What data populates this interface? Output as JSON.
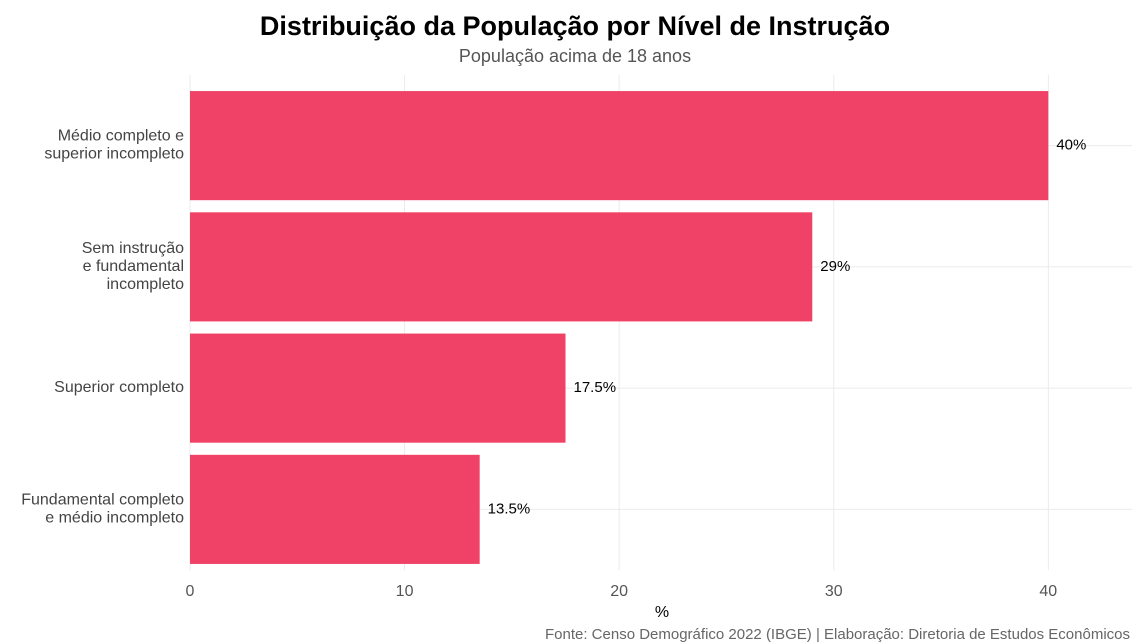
{
  "chart_data": {
    "type": "bar",
    "orientation": "horizontal",
    "title": "Distribuição da População por Nível de Instrução",
    "subtitle": "População acima de 18 anos",
    "x_label": "%",
    "caption": "Fonte: Censo Demográfico 2022 (IBGE) | Elaboração: Diretoria de Estudos Econômicos",
    "categories": [
      "Médio completo e\nsuperior incompleto",
      "Sem instrução\ne fundamental\nincompleto",
      "Superior completo",
      "Fundamental completo\ne médio incompleto"
    ],
    "values": [
      40,
      29,
      17.5,
      13.5
    ],
    "value_labels": [
      "40%",
      "29%",
      "17.5%",
      "13.5%"
    ],
    "color": "#ef4266",
    "xlim": [
      0,
      43.9
    ],
    "xticks": [
      0,
      10,
      20,
      30,
      40
    ],
    "grid": true
  }
}
